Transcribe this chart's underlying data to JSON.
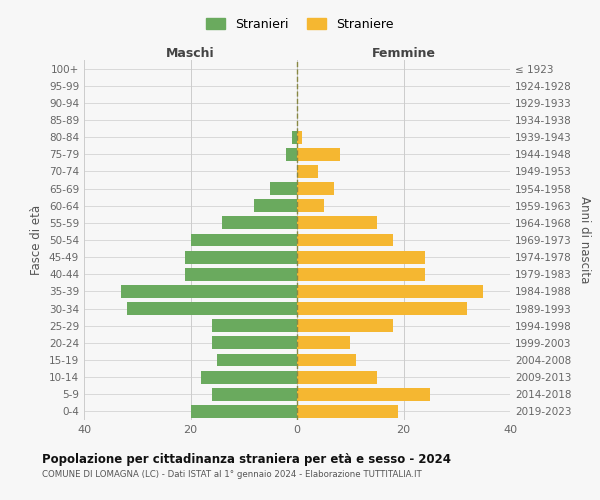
{
  "age_groups": [
    "0-4",
    "5-9",
    "10-14",
    "15-19",
    "20-24",
    "25-29",
    "30-34",
    "35-39",
    "40-44",
    "45-49",
    "50-54",
    "55-59",
    "60-64",
    "65-69",
    "70-74",
    "75-79",
    "80-84",
    "85-89",
    "90-94",
    "95-99",
    "100+"
  ],
  "birth_years": [
    "2019-2023",
    "2014-2018",
    "2009-2013",
    "2004-2008",
    "1999-2003",
    "1994-1998",
    "1989-1993",
    "1984-1988",
    "1979-1983",
    "1974-1978",
    "1969-1973",
    "1964-1968",
    "1959-1963",
    "1954-1958",
    "1949-1953",
    "1944-1948",
    "1939-1943",
    "1934-1938",
    "1929-1933",
    "1924-1928",
    "≤ 1923"
  ],
  "males": [
    20,
    16,
    18,
    15,
    16,
    16,
    32,
    33,
    21,
    21,
    20,
    14,
    8,
    5,
    0,
    2,
    1,
    0,
    0,
    0,
    0
  ],
  "females": [
    19,
    25,
    15,
    11,
    10,
    18,
    32,
    35,
    24,
    24,
    18,
    15,
    5,
    7,
    4,
    8,
    1,
    0,
    0,
    0,
    0
  ],
  "male_color": "#6aaa5e",
  "female_color": "#f5b731",
  "background_color": "#f7f7f7",
  "grid_color": "#cccccc",
  "title": "Popolazione per cittadinanza straniera per età e sesso - 2024",
  "subtitle": "COMUNE DI LOMAGNA (LC) - Dati ISTAT al 1° gennaio 2024 - Elaborazione TUTTITALIA.IT",
  "xlabel_left": "Maschi",
  "xlabel_right": "Femmine",
  "ylabel_left": "Fasce di età",
  "ylabel_right": "Anni di nascita",
  "legend_male": "Stranieri",
  "legend_female": "Straniere",
  "xlim": 40,
  "bar_height": 0.75
}
